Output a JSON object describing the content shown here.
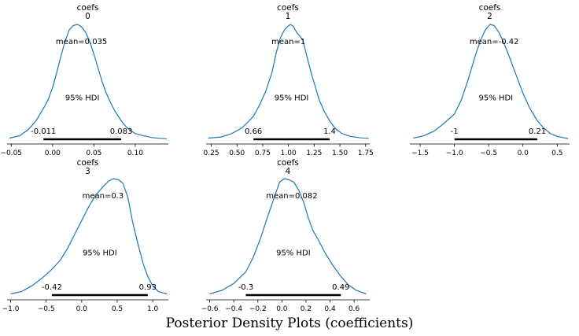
{
  "figure_title": "Posterior Density Plots (coefficients)",
  "chart_data": [
    {
      "type": "area",
      "title": "coefs",
      "subtitle": "0",
      "x_ticks": [
        -0.05,
        0.0,
        0.05,
        0.1
      ],
      "x_tick_labels": [
        "−0.05",
        "0.00",
        "0.05",
        "0.10"
      ],
      "xlim": [
        -0.055,
        0.14
      ],
      "mean": 0.035,
      "mean_label": "mean=0.035",
      "hdi_label": "95% HDI",
      "hdi": [
        -0.011,
        0.083
      ],
      "hdi_labels": [
        "-0.011",
        "0.083"
      ],
      "density_x": [
        -0.052,
        -0.04,
        -0.03,
        -0.02,
        -0.011,
        -0.005,
        0.0,
        0.005,
        0.01,
        0.015,
        0.02,
        0.025,
        0.03,
        0.033,
        0.036,
        0.04,
        0.045,
        0.05,
        0.055,
        0.06,
        0.065,
        0.07,
        0.075,
        0.083,
        0.09,
        0.1,
        0.11,
        0.12,
        0.13,
        0.138
      ],
      "density_y": [
        0.01,
        0.03,
        0.08,
        0.16,
        0.27,
        0.35,
        0.45,
        0.58,
        0.72,
        0.85,
        0.95,
        0.99,
        1.0,
        0.99,
        0.97,
        0.93,
        0.85,
        0.74,
        0.62,
        0.5,
        0.4,
        0.32,
        0.25,
        0.16,
        0.1,
        0.05,
        0.03,
        0.015,
        0.008,
        0.005
      ]
    },
    {
      "type": "area",
      "title": "coefs",
      "subtitle": "1",
      "x_ticks": [
        0.25,
        0.5,
        0.75,
        1.0,
        1.25,
        1.5,
        1.75
      ],
      "x_tick_labels": [
        "0.25",
        "0.50",
        "0.75",
        "1.00",
        "1.25",
        "1.50",
        "1.75"
      ],
      "xlim": [
        0.2,
        1.79
      ],
      "mean": 1,
      "mean_label": "mean=1",
      "hdi_label": "95% HDI",
      "hdi": [
        0.66,
        1.4
      ],
      "hdi_labels": [
        "0.66",
        "1.4"
      ],
      "density_x": [
        0.22,
        0.35,
        0.45,
        0.55,
        0.66,
        0.72,
        0.78,
        0.84,
        0.88,
        0.92,
        0.96,
        0.99,
        1.02,
        1.05,
        1.08,
        1.11,
        1.14,
        1.18,
        1.22,
        1.26,
        1.3,
        1.35,
        1.4,
        1.46,
        1.52,
        1.6,
        1.7,
        1.78
      ],
      "density_y": [
        0.01,
        0.02,
        0.05,
        0.1,
        0.2,
        0.3,
        0.42,
        0.58,
        0.75,
        0.88,
        0.95,
        0.98,
        1.0,
        0.98,
        0.93,
        0.9,
        0.86,
        0.72,
        0.58,
        0.46,
        0.34,
        0.24,
        0.16,
        0.09,
        0.05,
        0.025,
        0.012,
        0.008
      ]
    },
    {
      "type": "area",
      "title": "coefs",
      "subtitle": "2",
      "x_ticks": [
        -1.5,
        -1.0,
        -0.5,
        0.0,
        0.5
      ],
      "x_tick_labels": [
        "−1.5",
        "−1.0",
        "−0.5",
        "0.0",
        "0.5"
      ],
      "xlim": [
        -1.65,
        0.68
      ],
      "mean": -0.42,
      "mean_label": "mean=-0.42",
      "hdi_label": "95% HDI",
      "hdi": [
        -1,
        0.21
      ],
      "hdi_labels": [
        "-1",
        "0.21"
      ],
      "density_x": [
        -1.6,
        -1.45,
        -1.3,
        -1.15,
        -1.0,
        -0.9,
        -0.8,
        -0.7,
        -0.62,
        -0.55,
        -0.48,
        -0.42,
        -0.35,
        -0.28,
        -0.2,
        -0.1,
        0.0,
        0.1,
        0.21,
        0.3,
        0.4,
        0.5,
        0.6,
        0.66
      ],
      "density_y": [
        0.01,
        0.03,
        0.07,
        0.14,
        0.22,
        0.34,
        0.52,
        0.72,
        0.86,
        0.95,
        1.0,
        0.99,
        0.93,
        0.84,
        0.72,
        0.56,
        0.4,
        0.27,
        0.16,
        0.1,
        0.05,
        0.025,
        0.012,
        0.006
      ]
    },
    {
      "type": "area",
      "title": "coefs",
      "subtitle": "3",
      "x_ticks": [
        -1.0,
        -0.5,
        0.0,
        0.5,
        1.0
      ],
      "x_tick_labels": [
        "−1.0",
        "−0.5",
        "0.0",
        "0.5",
        "1.0"
      ],
      "xlim": [
        -1.05,
        1.22
      ],
      "mean": 0.3,
      "mean_label": "mean=0.3",
      "hdi_label": "95% HDI",
      "hdi": [
        -0.42,
        0.93
      ],
      "hdi_labels": [
        "-0.42",
        "0.93"
      ],
      "density_x": [
        -1.0,
        -0.85,
        -0.7,
        -0.55,
        -0.42,
        -0.3,
        -0.2,
        -0.1,
        0.0,
        0.1,
        0.2,
        0.3,
        0.38,
        0.45,
        0.52,
        0.58,
        0.65,
        0.72,
        0.8,
        0.87,
        0.93,
        1.0,
        1.08,
        1.2
      ],
      "density_y": [
        0.01,
        0.03,
        0.08,
        0.15,
        0.22,
        0.3,
        0.4,
        0.52,
        0.64,
        0.76,
        0.86,
        0.93,
        0.98,
        1.0,
        0.99,
        0.96,
        0.84,
        0.62,
        0.42,
        0.26,
        0.16,
        0.08,
        0.03,
        0.01
      ]
    },
    {
      "type": "area",
      "title": "coefs",
      "subtitle": "4",
      "x_ticks": [
        -0.6,
        -0.4,
        -0.2,
        0.0,
        0.2,
        0.4,
        0.6
      ],
      "x_tick_labels": [
        "−0.6",
        "−0.4",
        "−0.2",
        "0.0",
        "0.2",
        "0.4",
        "0.6"
      ],
      "xlim": [
        -0.63,
        0.73
      ],
      "mean": 0.082,
      "mean_label": "mean=0.082",
      "hdi_label": "95% HDI",
      "hdi": [
        -0.3,
        0.49
      ],
      "hdi_labels": [
        "-0.3",
        "0.49"
      ],
      "density_x": [
        -0.6,
        -0.5,
        -0.4,
        -0.3,
        -0.24,
        -0.18,
        -0.12,
        -0.06,
        -0.02,
        0.02,
        0.06,
        0.1,
        0.14,
        0.18,
        0.22,
        0.26,
        0.3,
        0.36,
        0.42,
        0.49,
        0.55,
        0.62,
        0.7
      ],
      "density_y": [
        0.01,
        0.04,
        0.1,
        0.2,
        0.32,
        0.48,
        0.67,
        0.85,
        0.97,
        1.0,
        0.99,
        0.97,
        0.9,
        0.8,
        0.66,
        0.55,
        0.48,
        0.36,
        0.26,
        0.16,
        0.09,
        0.04,
        0.01
      ]
    }
  ]
}
